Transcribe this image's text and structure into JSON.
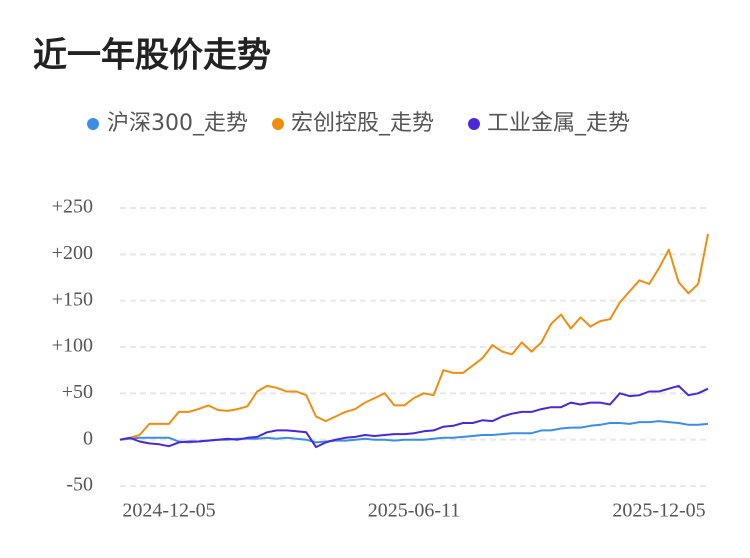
{
  "chart_data": {
    "type": "line",
    "title": "近一年股价走势",
    "categories": [
      null,
      null,
      null,
      null,
      null,
      "2024-12-05",
      null,
      null,
      null,
      null,
      null,
      null,
      null,
      null,
      null,
      null,
      null,
      null,
      null,
      null,
      null,
      null,
      null,
      null,
      null,
      null,
      null,
      null,
      null,
      null,
      "2025-06-11",
      null,
      null,
      null,
      null,
      null,
      null,
      null,
      null,
      null,
      null,
      null,
      null,
      null,
      null,
      null,
      null,
      null,
      null,
      null,
      null,
      null,
      null,
      null,
      null,
      "2025-12-05",
      null,
      null,
      null,
      null,
      null
    ],
    "series": [
      {
        "name": "沪深300_走势",
        "color": "#3a8ee6",
        "values": [
          0,
          1,
          2,
          2,
          2,
          2,
          -2,
          -3,
          -2,
          -1,
          0,
          0,
          1,
          1,
          1,
          2,
          1,
          2,
          1,
          0,
          -3,
          -2,
          -1,
          -1,
          0,
          1,
          0,
          0,
          -1,
          0,
          0,
          0,
          1,
          2,
          2,
          3,
          4,
          5,
          5,
          6,
          7,
          7,
          7,
          10,
          10,
          12,
          13,
          13,
          15,
          16,
          18,
          18,
          17,
          19,
          19,
          20,
          19,
          18,
          16,
          16,
          17
        ]
      },
      {
        "name": "宏创控股_走势",
        "color": "#f08d0e",
        "values": [
          0,
          2,
          5,
          17,
          17,
          17,
          30,
          30,
          33,
          37,
          32,
          31,
          33,
          36,
          52,
          58,
          56,
          52,
          52,
          48,
          25,
          20,
          25,
          30,
          33,
          40,
          45,
          50,
          37,
          37,
          45,
          50,
          48,
          75,
          72,
          72,
          80,
          88,
          102,
          95,
          92,
          105,
          95,
          105,
          125,
          135,
          120,
          132,
          122,
          128,
          130,
          148,
          160,
          172,
          168,
          185,
          205,
          170,
          158,
          168,
          222
        ]
      },
      {
        "name": "工业金属_走势",
        "color": "#4a27d8",
        "values": [
          0,
          2,
          -2,
          -4,
          -5,
          -7,
          -3,
          -2,
          -2,
          -1,
          0,
          1,
          0,
          2,
          3,
          8,
          10,
          10,
          9,
          8,
          -8,
          -3,
          0,
          2,
          3,
          5,
          4,
          5,
          6,
          6,
          7,
          9,
          10,
          14,
          15,
          18,
          18,
          21,
          20,
          25,
          28,
          30,
          30,
          33,
          35,
          35,
          40,
          38,
          40,
          40,
          38,
          50,
          47,
          48,
          52,
          52,
          55,
          58,
          48,
          50,
          55
        ]
      }
    ],
    "ylim": [
      -50,
      250
    ],
    "yticks": [
      -50,
      0,
      {
        "value": 50,
        "label": "+50"
      },
      {
        "value": 100,
        "label": "+100"
      },
      {
        "value": 150,
        "label": "+150"
      },
      {
        "value": 200,
        "label": "+200"
      },
      {
        "value": 250,
        "label": "+250"
      }
    ],
    "grid": true
  }
}
